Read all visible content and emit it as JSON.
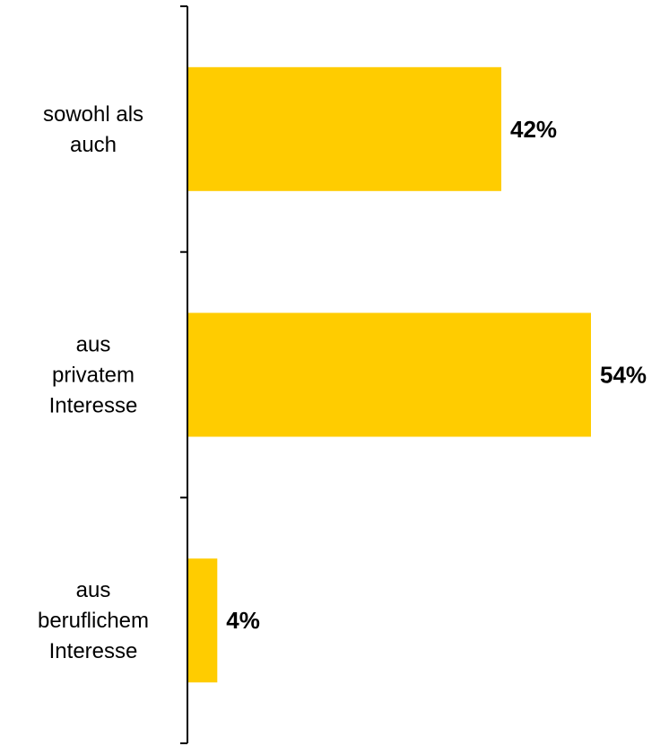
{
  "chart_data": {
    "type": "bar",
    "orientation": "horizontal",
    "categories": [
      [
        "sowohl als",
        "auch"
      ],
      [
        "aus",
        "privatem",
        "Interesse"
      ],
      [
        "aus",
        "beruflichem",
        "Interesse"
      ]
    ],
    "values": [
      42,
      54,
      4
    ],
    "value_labels": [
      "42%",
      "54%",
      "4%"
    ],
    "value_unit": "%",
    "xlim": [
      0,
      54
    ],
    "bar_color": "#FFCC00",
    "axis_color": "#000000",
    "grid": false,
    "legend": false
  }
}
